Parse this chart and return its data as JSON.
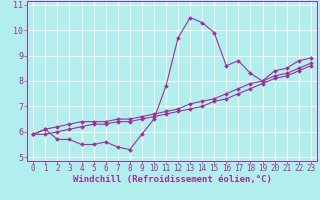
{
  "xlabel": "Windchill (Refroidissement éolien,°C)",
  "x_data": [
    0,
    1,
    2,
    3,
    4,
    5,
    6,
    7,
    8,
    9,
    10,
    11,
    12,
    13,
    14,
    15,
    16,
    17,
    18,
    19,
    20,
    21,
    22,
    23
  ],
  "line1_y": [
    5.9,
    6.1,
    5.7,
    5.7,
    5.5,
    5.5,
    5.6,
    5.4,
    5.3,
    5.9,
    6.5,
    7.8,
    9.7,
    10.5,
    10.3,
    9.9,
    8.6,
    8.8,
    8.3,
    8.0,
    8.4,
    8.5,
    8.8,
    8.9
  ],
  "line2_y": [
    5.9,
    6.1,
    6.2,
    6.3,
    6.4,
    6.4,
    6.4,
    6.5,
    6.5,
    6.6,
    6.7,
    6.8,
    6.9,
    7.1,
    7.2,
    7.3,
    7.5,
    7.7,
    7.9,
    8.0,
    8.2,
    8.3,
    8.5,
    8.7
  ],
  "line3_y": [
    5.9,
    5.9,
    6.0,
    6.1,
    6.2,
    6.3,
    6.3,
    6.4,
    6.4,
    6.5,
    6.6,
    6.7,
    6.8,
    6.9,
    7.0,
    7.2,
    7.3,
    7.5,
    7.7,
    7.9,
    8.1,
    8.2,
    8.4,
    8.6
  ],
  "line_color": "#993399",
  "bg_color": "#b2eeee",
  "grid_color": "#ffffff",
  "axis_bg": "#cceeee",
  "xlim": [
    -0.5,
    23.5
  ],
  "ylim": [
    4.85,
    11.15
  ],
  "yticks": [
    5,
    6,
    7,
    8,
    9,
    10,
    11
  ],
  "xticks": [
    0,
    1,
    2,
    3,
    4,
    5,
    6,
    7,
    8,
    9,
    10,
    11,
    12,
    13,
    14,
    15,
    16,
    17,
    18,
    19,
    20,
    21,
    22,
    23
  ],
  "tick_fontsize": 5.5,
  "xlabel_fontsize": 6.5,
  "marker": "D",
  "markersize": 2.0,
  "linewidth": 0.8
}
